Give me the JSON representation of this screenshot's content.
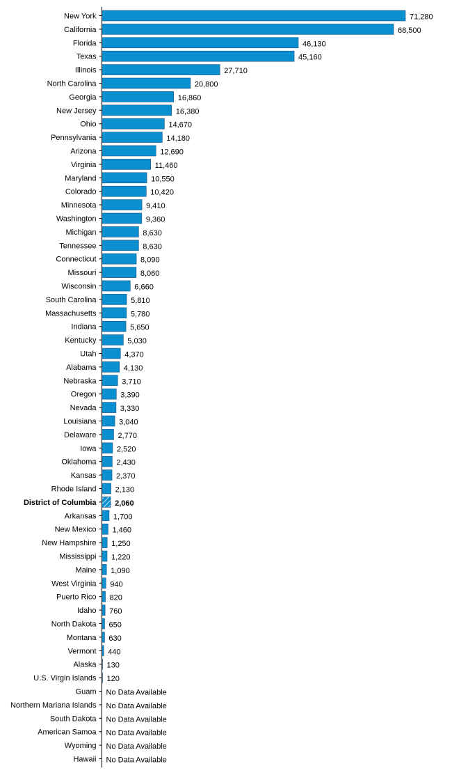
{
  "chart_data": {
    "type": "bar",
    "orientation": "horizontal",
    "title": "",
    "xlabel": "",
    "ylabel": "",
    "xlim": [
      0,
      71280
    ],
    "grid": false,
    "legend": "none",
    "bar_color": "#0a8fd0",
    "highlight_color": "#0a8fd0",
    "highlight_category": "District of Columbia",
    "missing_label": "No Data Available",
    "categories": [
      "New York",
      "California",
      "Florida",
      "Texas",
      "Illinois",
      "North Carolina",
      "Georgia",
      "New Jersey",
      "Ohio",
      "Pennsylvania",
      "Arizona",
      "Virginia",
      "Maryland",
      "Colorado",
      "Minnesota",
      "Washington",
      "Michigan",
      "Tennessee",
      "Connecticut",
      "Missouri",
      "Wisconsin",
      "South Carolina",
      "Massachusetts",
      "Indiana",
      "Kentucky",
      "Utah",
      "Alabama",
      "Nebraska",
      "Oregon",
      "Nevada",
      "Louisiana",
      "Delaware",
      "Iowa",
      "Oklahoma",
      "Kansas",
      "Rhode Island",
      "District of Columbia",
      "Arkansas",
      "New Mexico",
      "New Hampshire",
      "Mississippi",
      "Maine",
      "West Virginia",
      "Puerto Rico",
      "Idaho",
      "North Dakota",
      "Montana",
      "Vermont",
      "Alaska",
      "U.S. Virgin Islands",
      "Guam",
      "Northern Mariana Islands",
      "South Dakota",
      "American Samoa",
      "Wyoming",
      "Hawaii"
    ],
    "values": [
      71280,
      68500,
      46130,
      45160,
      27710,
      20800,
      16860,
      16380,
      14670,
      14180,
      12690,
      11460,
      10550,
      10420,
      9410,
      9360,
      8630,
      8630,
      8090,
      8060,
      6660,
      5810,
      5780,
      5650,
      5030,
      4370,
      4130,
      3710,
      3390,
      3330,
      3040,
      2770,
      2520,
      2430,
      2370,
      2130,
      2060,
      1700,
      1460,
      1250,
      1220,
      1090,
      940,
      820,
      760,
      650,
      630,
      440,
      130,
      120,
      null,
      null,
      null,
      null,
      null,
      null
    ],
    "value_labels": [
      "71,280",
      "68,500",
      "46,130",
      "45,160",
      "27,710",
      "20,800",
      "16,860",
      "16,380",
      "14,670",
      "14,180",
      "12,690",
      "11,460",
      "10,550",
      "10,420",
      "9,410",
      "9,360",
      "8,630",
      "8,630",
      "8,090",
      "8,060",
      "6,660",
      "5,810",
      "5,780",
      "5,650",
      "5,030",
      "4,370",
      "4,130",
      "3,710",
      "3,390",
      "3,330",
      "3,040",
      "2,770",
      "2,520",
      "2,430",
      "2,370",
      "2,130",
      "2,060",
      "1,700",
      "1,460",
      "1,250",
      "1,220",
      "1,090",
      "940",
      "820",
      "760",
      "650",
      "630",
      "440",
      "130",
      "120",
      "No Data Available",
      "No Data Available",
      "No Data Available",
      "No Data Available",
      "No Data Available",
      "No Data Available"
    ]
  }
}
